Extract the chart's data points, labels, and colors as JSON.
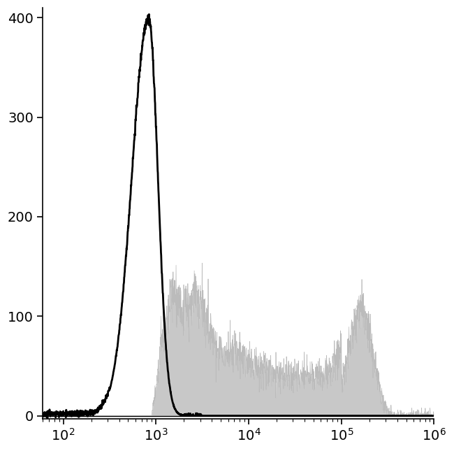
{
  "xlim": [
    60,
    1000000
  ],
  "ylim": [
    -3,
    410
  ],
  "yticks": [
    0,
    100,
    200,
    300,
    400
  ],
  "background_color": "#ffffff",
  "black_line_color": "#000000",
  "gray_fill_color": "#c8c8c8",
  "gray_edge_color": "#bbbbbb",
  "linewidth_black": 2.0,
  "figsize": [
    6.5,
    6.45
  ],
  "dpi": 100,
  "seed": 12345
}
